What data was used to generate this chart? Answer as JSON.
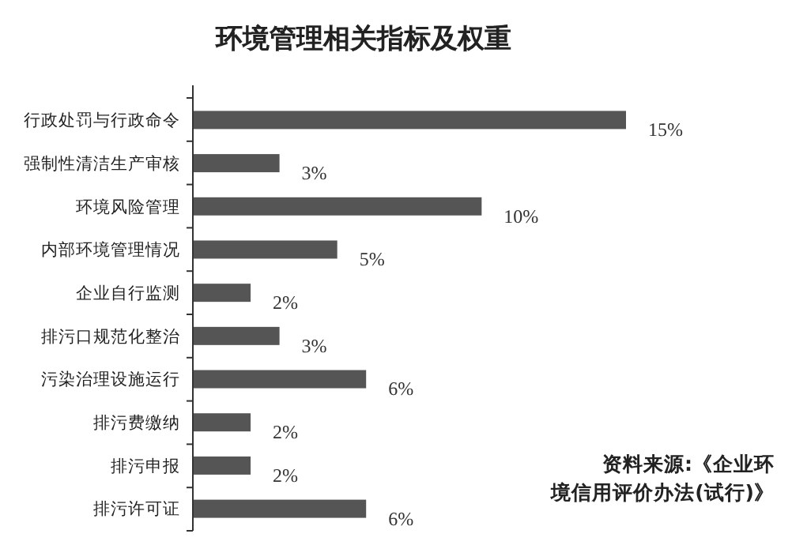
{
  "chart_data": {
    "type": "bar",
    "orientation": "horizontal",
    "title": "环境管理相关指标及权重",
    "categories": [
      "行政处罚与行政命令",
      "强制性清洁生产审核",
      "环境风险管理",
      "内部环境管理情况",
      "企业自行监测",
      "排污口规范化整治",
      "污染治理设施运行",
      "排污费缴纳",
      "排污申报",
      "排污许可证"
    ],
    "values": [
      15,
      3,
      10,
      5,
      2,
      3,
      6,
      2,
      2,
      6
    ],
    "value_labels": [
      "15%",
      "3%",
      "10%",
      "5%",
      "2%",
      "3%",
      "6%",
      "2%",
      "2%",
      "6%"
    ],
    "color": "#555555",
    "annotations": [
      "资料来源:《企业环境信用评价办法(试行)》"
    ]
  }
}
